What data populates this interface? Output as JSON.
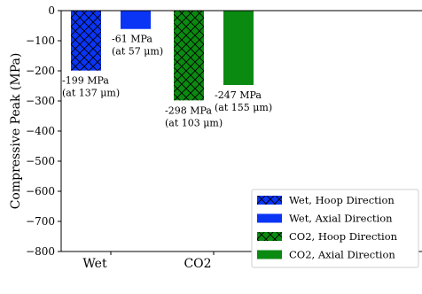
{
  "chart_data": {
    "type": "bar",
    "ylabel": "Compressive Peak (MPa)",
    "ylim": [
      -800,
      0
    ],
    "yticks": [
      0,
      -100,
      -200,
      -300,
      -400,
      -500,
      -600,
      -700,
      -800
    ],
    "ytick_labels": [
      "0",
      "−100",
      "−200",
      "−300",
      "−400",
      "−500",
      "−600",
      "−700",
      "−800"
    ],
    "categories": [
      "Wet",
      "CO2"
    ],
    "series": [
      {
        "name": "Wet, Hoop Direction",
        "group": 0,
        "offset": -0.25,
        "value": -199,
        "color": "#0a35f5",
        "hatch": true,
        "label1": "-199 MPa",
        "label2": "(at 137 μm)"
      },
      {
        "name": "Wet, Axial Direction",
        "group": 0,
        "offset": 0.25,
        "value": -61,
        "color": "#0a35f5",
        "hatch": false,
        "label1": "-61 MPa",
        "label2": "(at 57 μm)"
      },
      {
        "name": "CO2, Hoop Direction",
        "group": 1,
        "offset": -0.25,
        "value": -298,
        "color": "#0b8a12",
        "hatch": true,
        "label1": "-298 MPa",
        "label2": "(at 103 μm)"
      },
      {
        "name": "CO2, Axial Direction",
        "group": 1,
        "offset": 0.25,
        "value": -247,
        "color": "#0b8a12",
        "hatch": false,
        "label1": "-247 MPa",
        "label2": "(at 155 μm)"
      }
    ],
    "legend_position": "lower-right",
    "grid": false
  }
}
